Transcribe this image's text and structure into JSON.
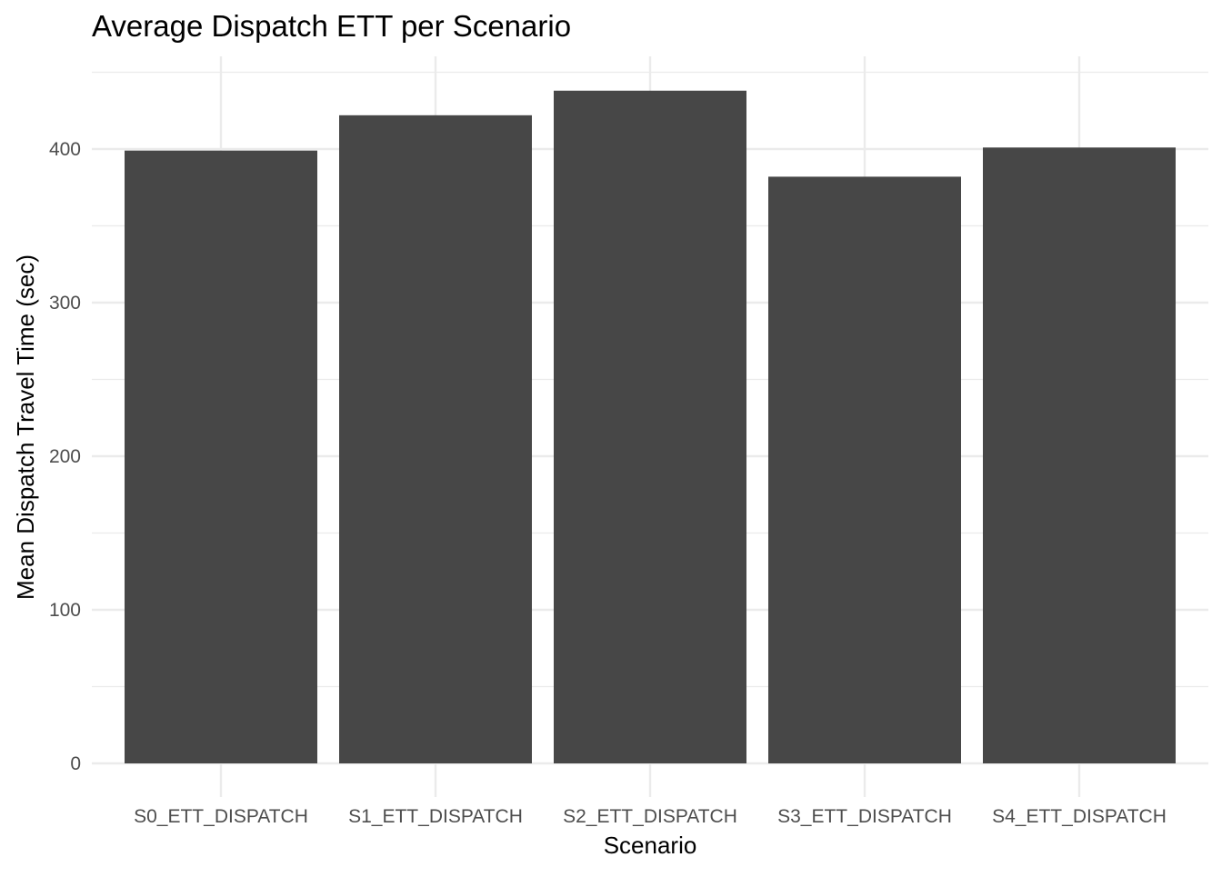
{
  "chart_data": {
    "type": "bar",
    "title": "Average Dispatch ETT per Scenario",
    "xlabel": "Scenario",
    "ylabel": "Mean Dispatch Travel Time (sec)",
    "categories": [
      "S0_ETT_DISPATCH",
      "S1_ETT_DISPATCH",
      "S2_ETT_DISPATCH",
      "S3_ETT_DISPATCH",
      "S4_ETT_DISPATCH"
    ],
    "values": [
      399,
      422,
      438,
      382,
      401
    ],
    "ylim": [
      0,
      450
    ],
    "yticks": [
      0,
      100,
      200,
      300,
      400
    ],
    "yticks_minor": [
      50,
      150,
      250,
      350,
      450
    ],
    "grid": true,
    "legend": "none",
    "bar_color": "#474747",
    "grid_color": "#ebebeb",
    "tick_color": "#4d4d4d"
  }
}
